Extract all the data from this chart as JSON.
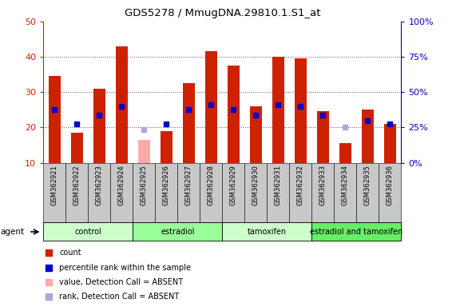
{
  "title": "GDS5278 / MmugDNA.29810.1.S1_at",
  "samples": [
    "GSM362921",
    "GSM362922",
    "GSM362923",
    "GSM362924",
    "GSM362925",
    "GSM362926",
    "GSM362927",
    "GSM362928",
    "GSM362929",
    "GSM362930",
    "GSM362931",
    "GSM362932",
    "GSM362933",
    "GSM362934",
    "GSM362935",
    "GSM362936"
  ],
  "red_values": [
    34.5,
    18.5,
    31.0,
    43.0,
    null,
    19.0,
    32.5,
    41.5,
    37.5,
    26.0,
    40.0,
    39.5,
    24.5,
    15.5,
    25.0,
    21.0
  ],
  "pink_values": [
    null,
    null,
    null,
    null,
    16.5,
    null,
    null,
    null,
    null,
    null,
    null,
    null,
    null,
    null,
    null,
    null
  ],
  "blue_values": [
    25.0,
    21.0,
    23.5,
    26.0,
    null,
    21.0,
    25.0,
    26.5,
    25.0,
    23.5,
    26.5,
    26.0,
    23.5,
    null,
    22.0,
    21.0
  ],
  "lilac_values": [
    null,
    null,
    null,
    null,
    19.5,
    null,
    null,
    null,
    null,
    null,
    null,
    null,
    null,
    20.0,
    null,
    null
  ],
  "groups": [
    {
      "label": "control",
      "start": 0,
      "end": 3,
      "color": "#ccffcc"
    },
    {
      "label": "estradiol",
      "start": 4,
      "end": 7,
      "color": "#99ff99"
    },
    {
      "label": "tamoxifen",
      "start": 8,
      "end": 11,
      "color": "#ccffcc"
    },
    {
      "label": "estradiol and tamoxifen",
      "start": 12,
      "end": 15,
      "color": "#66ee66"
    }
  ],
  "ylim_left": [
    10,
    50
  ],
  "ylim_right": [
    0,
    100
  ],
  "yticks_left": [
    10,
    20,
    30,
    40,
    50
  ],
  "yticks_right": [
    0,
    25,
    50,
    75,
    100
  ],
  "ytick_labels_right": [
    "0%",
    "25%",
    "50%",
    "75%",
    "100%"
  ],
  "bar_width": 0.55,
  "marker_size": 5,
  "red_color": "#cc2200",
  "pink_color": "#ffaaaa",
  "blue_color": "#0000cc",
  "lilac_color": "#aaaadd",
  "bg_plot": "#ffffff",
  "bg_xtick": "#c8c8c8",
  "dotted_line_color": "#555555",
  "figsize": [
    5.71,
    3.84
  ],
  "dpi": 100
}
